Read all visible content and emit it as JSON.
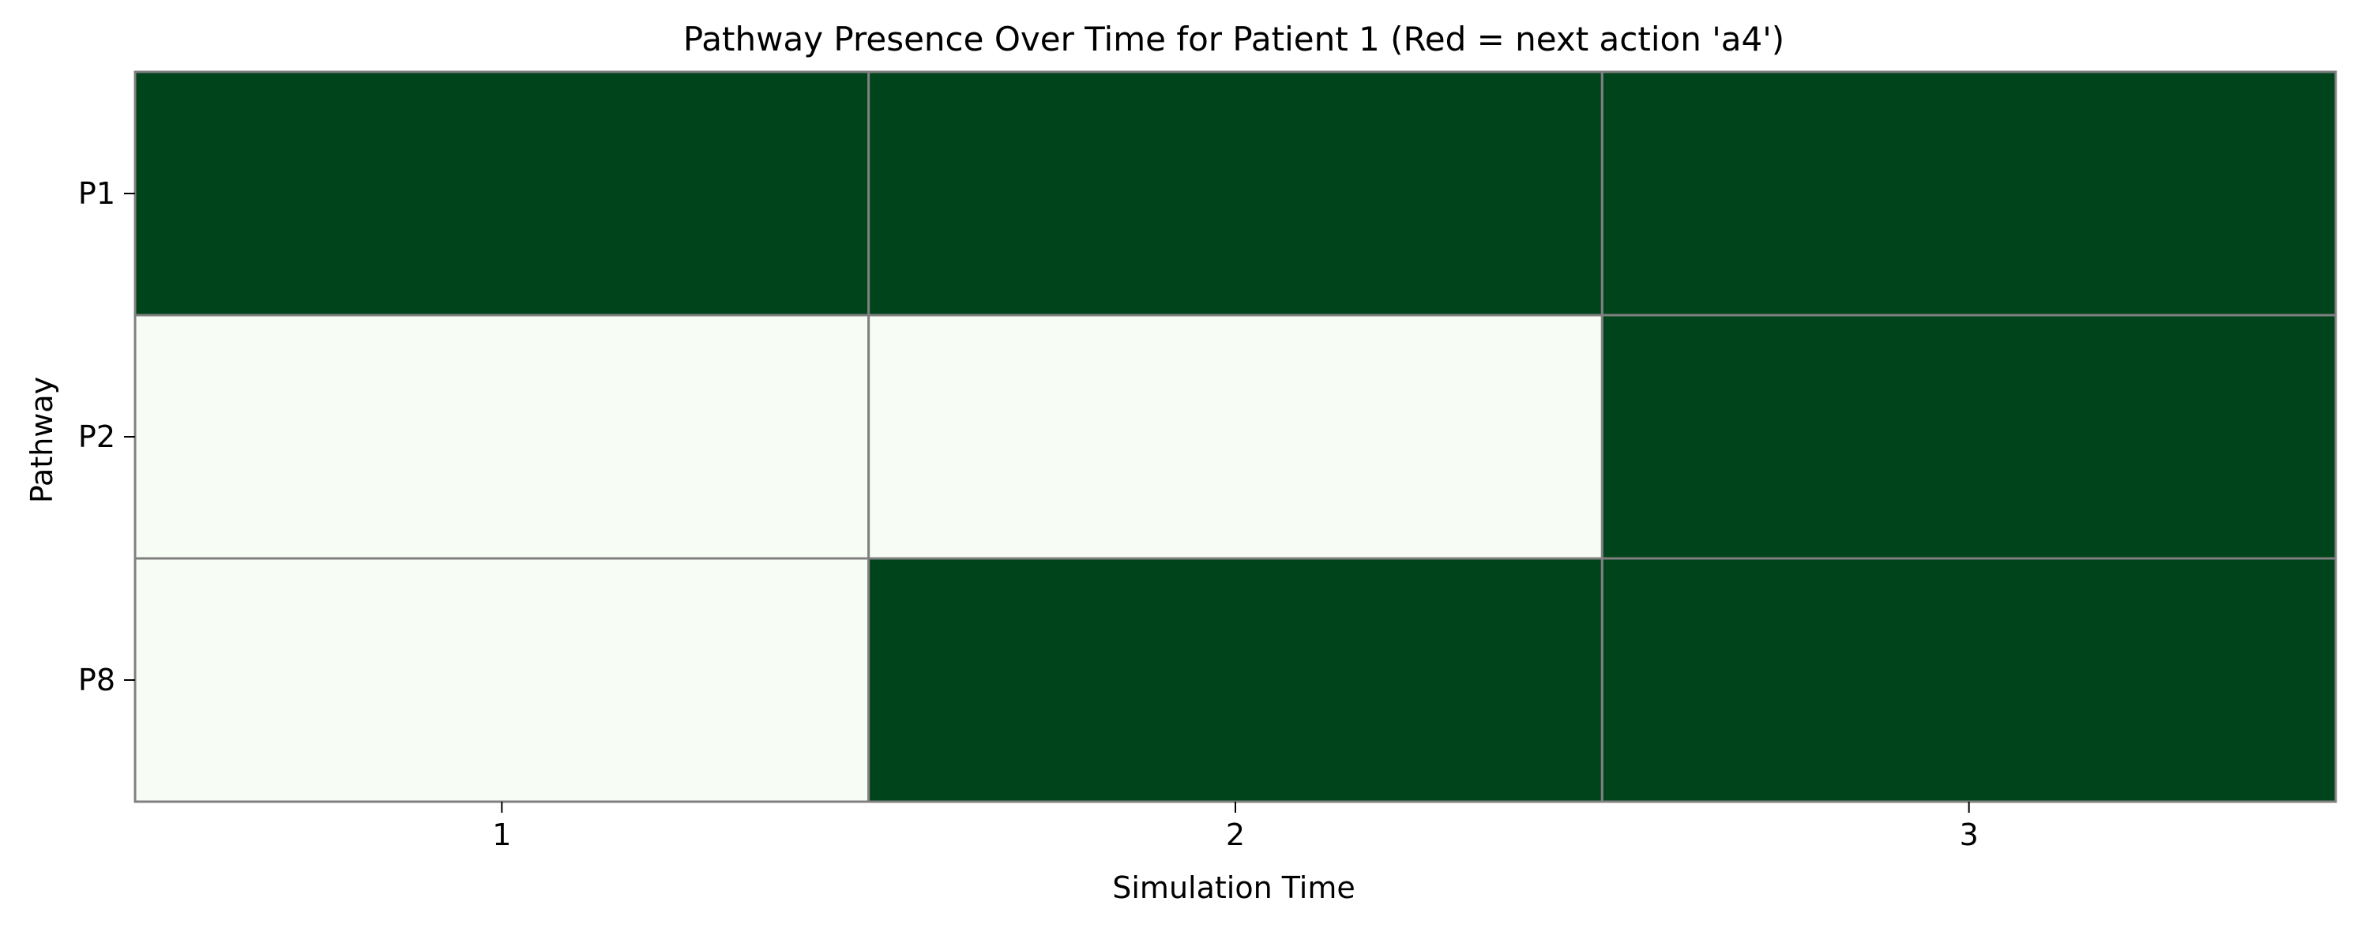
{
  "chart_data": {
    "type": "heatmap",
    "title": "Pathway Presence Over Time for Patient 1 (Red = next action 'a4')",
    "xlabel": "Simulation Time",
    "ylabel": "Pathway",
    "x_categories": [
      "1",
      "2",
      "3"
    ],
    "y_categories": [
      "P1",
      "P2",
      "P8"
    ],
    "values": [
      [
        1,
        1,
        1
      ],
      [
        0,
        0,
        1
      ],
      [
        0,
        1,
        1
      ]
    ],
    "colormap": {
      "present": "#00441b",
      "absent": "#f7fcf5",
      "cell_border": "#808080"
    },
    "grid": true,
    "legend": "none"
  }
}
